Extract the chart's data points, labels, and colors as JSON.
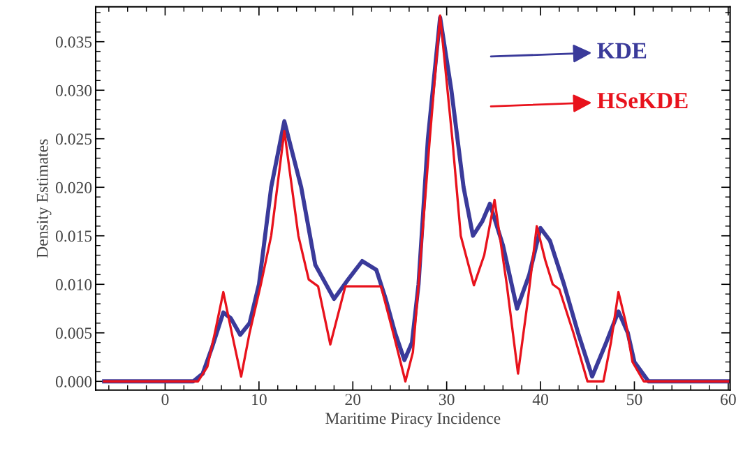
{
  "chart_data": {
    "type": "line",
    "xlabel": "Maritime Piracy Incidence",
    "ylabel": "Density Estimates",
    "xlim": [
      -7.4,
      60.2
    ],
    "ylim": [
      -0.0009,
      0.0386
    ],
    "xticks": [
      0,
      10,
      20,
      30,
      40,
      50,
      60
    ],
    "yticks": [
      {
        "value": 0,
        "label": "0.000"
      },
      {
        "value": 0.005,
        "label": "0.005"
      },
      {
        "value": 0.01,
        "label": "0.010"
      },
      {
        "value": 0.015,
        "label": "0.015"
      },
      {
        "value": 0.02,
        "label": "0.020"
      },
      {
        "value": 0.025,
        "label": "0.025"
      },
      {
        "value": 0.03,
        "label": "0.030"
      },
      {
        "value": 0.035,
        "label": "0.035"
      }
    ],
    "grid": false,
    "legend": "top right",
    "marker": "none",
    "line_style": "solid",
    "series": [
      {
        "name": "KDE",
        "color": "#3a3a9a",
        "x": [
          -6.5,
          0,
          3,
          4,
          5,
          6.2,
          7,
          8,
          9,
          10,
          11.3,
          12.7,
          14.5,
          16,
          18,
          19.5,
          21,
          22.5,
          23.5,
          24.5,
          25.5,
          26.3,
          27,
          28,
          29.3,
          30.5,
          31.8,
          32.8,
          33.8,
          34.6,
          36,
          37.5,
          38.8,
          40,
          41,
          42.5,
          44,
          45.5,
          47,
          48.3,
          49.3,
          50,
          51.5,
          55,
          60
        ],
        "values": [
          0,
          0,
          0,
          0.0008,
          0.0035,
          0.0071,
          0.0065,
          0.0048,
          0.006,
          0.01,
          0.02,
          0.0268,
          0.02,
          0.012,
          0.0085,
          0.0105,
          0.0124,
          0.0115,
          0.0085,
          0.005,
          0.0022,
          0.004,
          0.01,
          0.025,
          0.0375,
          0.03,
          0.02,
          0.015,
          0.0165,
          0.0183,
          0.014,
          0.0075,
          0.011,
          0.0158,
          0.0145,
          0.01,
          0.005,
          0.0005,
          0.004,
          0.0072,
          0.005,
          0.002,
          0,
          0,
          0
        ]
      },
      {
        "name": "HSeKDE",
        "color": "#e8121c",
        "x": [
          -6.5,
          0,
          3.5,
          4.5,
          5.3,
          6.2,
          7.1,
          8.1,
          9,
          10.2,
          11.3,
          12.7,
          14.2,
          15.3,
          16.3,
          17.6,
          19.2,
          21,
          23,
          24.3,
          25.6,
          26.4,
          27,
          28.2,
          29.3,
          30.6,
          31.5,
          32.9,
          34,
          35.1,
          36.4,
          37.6,
          38.6,
          39.6,
          40.5,
          41.3,
          42,
          43.5,
          45,
          46.7,
          47.5,
          48.3,
          49.1,
          49.8,
          51,
          55,
          60
        ],
        "values": [
          0,
          0,
          0,
          0.0015,
          0.005,
          0.0092,
          0.005,
          0.0005,
          0.005,
          0.01,
          0.015,
          0.0258,
          0.015,
          0.0105,
          0.0098,
          0.0038,
          0.0098,
          0.0098,
          0.0098,
          0.005,
          0,
          0.003,
          0.01,
          0.025,
          0.0377,
          0.025,
          0.015,
          0.0099,
          0.013,
          0.0187,
          0.01,
          0.0008,
          0.008,
          0.016,
          0.0125,
          0.01,
          0.0095,
          0.005,
          0,
          0,
          0.004,
          0.0092,
          0.006,
          0.002,
          0,
          0,
          0
        ]
      }
    ]
  }
}
